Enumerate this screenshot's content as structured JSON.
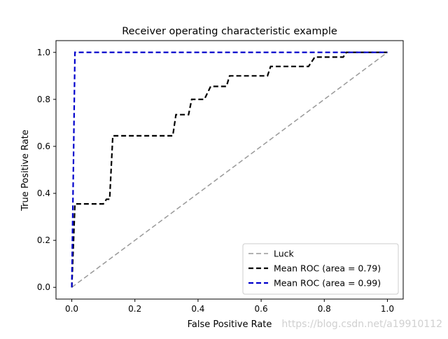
{
  "chart_data": {
    "type": "line",
    "title": "Receiver operating characteristic example",
    "xlabel": "False Positive Rate",
    "ylabel": "True Positive Rate",
    "xlim": [
      -0.05,
      1.05
    ],
    "ylim": [
      -0.05,
      1.05
    ],
    "x_ticks": [
      "0.0",
      "0.2",
      "0.4",
      "0.6",
      "0.8",
      "1.0"
    ],
    "y_ticks": [
      "0.0",
      "0.2",
      "0.4",
      "0.6",
      "0.8",
      "1.0"
    ],
    "grid": false,
    "legend_position": "lower-right",
    "series": [
      {
        "name": "Luck",
        "color": "#999999",
        "style": "dashed",
        "x": [
          0.0,
          1.0
        ],
        "y": [
          0.0,
          1.0
        ]
      },
      {
        "name": "Mean ROC (area = 0.79)",
        "color": "#000000",
        "style": "dashed",
        "x": [
          0.0,
          0.01,
          0.1,
          0.11,
          0.12,
          0.13,
          0.32,
          0.33,
          0.37,
          0.38,
          0.42,
          0.44,
          0.49,
          0.5,
          0.62,
          0.63,
          0.75,
          0.77,
          0.78,
          0.86,
          0.87,
          1.0
        ],
        "y": [
          0.0,
          0.355,
          0.355,
          0.375,
          0.375,
          0.645,
          0.645,
          0.735,
          0.735,
          0.8,
          0.8,
          0.855,
          0.855,
          0.9,
          0.9,
          0.94,
          0.94,
          0.98,
          0.98,
          0.98,
          1.0,
          1.0
        ]
      },
      {
        "name": "Mean ROC (area = 0.99)",
        "color": "#0000cc",
        "style": "dashed",
        "x": [
          0.0,
          0.01,
          1.0
        ],
        "y": [
          0.0,
          1.0,
          1.0
        ]
      }
    ]
  },
  "watermark": "https://blog.csdn.net/a19910112"
}
